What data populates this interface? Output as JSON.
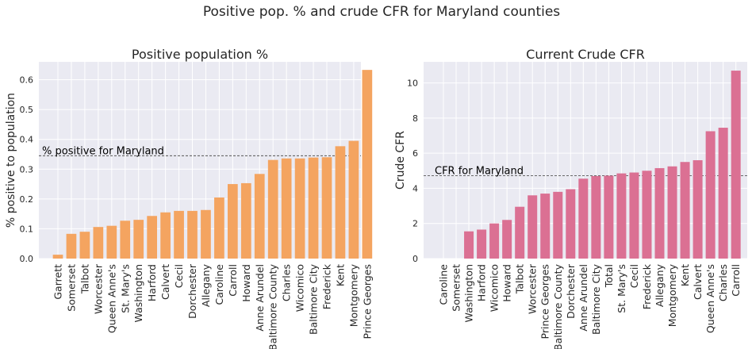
{
  "suptitle": "Positive pop. % and crude CFR for Maryland counties",
  "chart_data": [
    {
      "type": "bar",
      "title": "Positive population %",
      "xlabel": "",
      "ylabel": "% positive to population",
      "ylim": [
        0,
        0.66
      ],
      "yticks": [
        0.0,
        0.1,
        0.2,
        0.3,
        0.4,
        0.5,
        0.6
      ],
      "ytick_labels": [
        "0.0",
        "0.1",
        "0.2",
        "0.3",
        "0.4",
        "0.5",
        "0.6"
      ],
      "color": "#f4a460",
      "grid": true,
      "categories": [
        "Garrett",
        "Somerset",
        "Talbot",
        "Worcester",
        "Queen Anne's",
        "St. Mary's",
        "Washington",
        "Harford",
        "Calvert",
        "Cecil",
        "Dorchester",
        "Allegany",
        "Caroline",
        "Carroll",
        "Howard",
        "Anne Arundel",
        "Baltimore County",
        "Charles",
        "Wicomico",
        "Baltimore City",
        "Frederick",
        "Kent",
        "Montgomery",
        "Prince Georges"
      ],
      "values": [
        0.013,
        0.083,
        0.09,
        0.106,
        0.11,
        0.127,
        0.13,
        0.143,
        0.155,
        0.16,
        0.16,
        0.163,
        0.205,
        0.25,
        0.253,
        0.284,
        0.331,
        0.336,
        0.336,
        0.339,
        0.34,
        0.377,
        0.395,
        0.633
      ],
      "reference_line": {
        "label": "% positive for Maryland",
        "value": 0.345
      }
    },
    {
      "type": "bar",
      "title": "Current Crude CFR",
      "xlabel": "",
      "ylabel": "Crude CFR",
      "ylim": [
        0,
        11.2
      ],
      "yticks": [
        0,
        2,
        4,
        6,
        8,
        10
      ],
      "ytick_labels": [
        "0",
        "2",
        "4",
        "6",
        "8",
        "10"
      ],
      "color": "#db7093",
      "grid": true,
      "categories": [
        "Caroline",
        "Somerset",
        "Washington",
        "Harford",
        "Wicomico",
        "Howard",
        "Talbot",
        "Worcester",
        "Prince Georges",
        "Baltimore County",
        "Dorchester",
        "Anne Arundel",
        "Baltimore City",
        "Total",
        "St. Mary's",
        "Cecil",
        "Frederick",
        "Allegany",
        "Montgomery",
        "Kent",
        "Calvert",
        "Queen Anne's",
        "Charles",
        "Carroll"
      ],
      "values": [
        0,
        0,
        1.55,
        1.65,
        2.0,
        2.2,
        2.95,
        3.6,
        3.7,
        3.8,
        3.95,
        4.55,
        4.7,
        4.72,
        4.85,
        4.9,
        5.0,
        5.15,
        5.25,
        5.5,
        5.6,
        7.25,
        7.45,
        10.7
      ],
      "reference_line": {
        "label": "CFR for Maryland",
        "value": 4.72
      }
    }
  ]
}
